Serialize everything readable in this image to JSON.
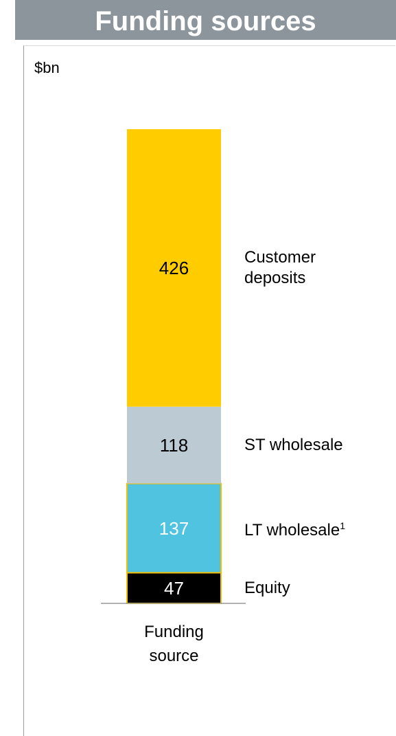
{
  "chart_data": {
    "type": "stacked_bar",
    "title": "Funding sources",
    "unit": "$bn",
    "categories": [
      "Funding source"
    ],
    "series": [
      {
        "name": "Equity",
        "color": "#000000",
        "values": [
          47
        ]
      },
      {
        "name": "LT wholesale",
        "footnote": "1",
        "color": "#4fc3e0",
        "values": [
          137
        ]
      },
      {
        "name": "ST wholesale",
        "color": "#bccbd3",
        "values": [
          118
        ]
      },
      {
        "name": "Customer deposits",
        "color": "#ffcc00",
        "values": [
          426
        ]
      }
    ]
  }
}
